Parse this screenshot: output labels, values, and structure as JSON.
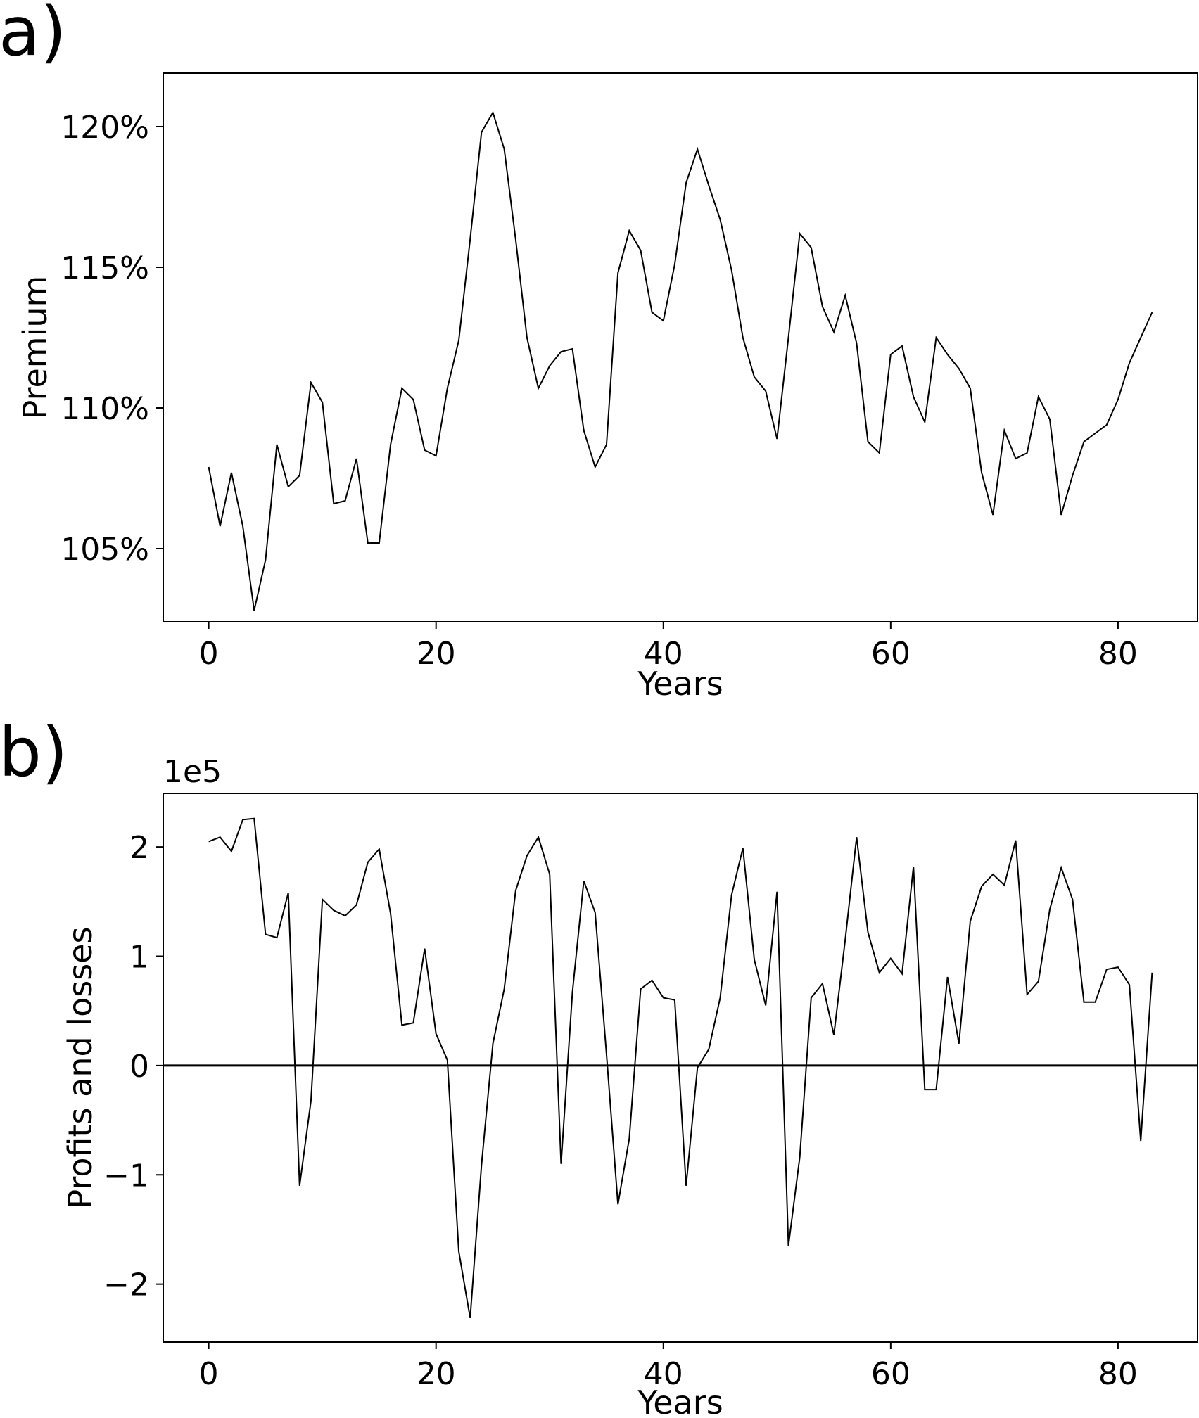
{
  "chart_data": [
    {
      "type": "line",
      "panel_label": "a)",
      "xlabel": "Years",
      "ylabel": "Premium",
      "xlim": [
        -4,
        87
      ],
      "ylim": [
        102.4,
        121.9
      ],
      "xticks": [
        0,
        20,
        40,
        60,
        80
      ],
      "xtick_labels": [
        "0",
        "20",
        "40",
        "60",
        "80"
      ],
      "yticks": [
        105,
        110,
        115,
        120
      ],
      "ytick_labels": [
        "105%",
        "110%",
        "115%",
        "120%"
      ],
      "grid": false,
      "series": [
        {
          "x": [
            0,
            1,
            2,
            3,
            4,
            5,
            6,
            7,
            8,
            9,
            10,
            11,
            12,
            13,
            14,
            15,
            16,
            17,
            18,
            19,
            20,
            21,
            22,
            23,
            24,
            25,
            26,
            27,
            28,
            29,
            30,
            31,
            32,
            33,
            34,
            35,
            36,
            37,
            38,
            39,
            40,
            41,
            42,
            43,
            44,
            45,
            46,
            47,
            48,
            49,
            50,
            51,
            52,
            53,
            54,
            55,
            56,
            57,
            58,
            59,
            60,
            61,
            62,
            63,
            64,
            65,
            66,
            67,
            68,
            69,
            70,
            71,
            72,
            73,
            74,
            75,
            76,
            77,
            78,
            79,
            80,
            81,
            82,
            83
          ],
          "y": [
            107.9,
            105.8,
            107.7,
            105.8,
            102.8,
            104.6,
            108.7,
            107.2,
            107.6,
            110.9,
            110.2,
            106.6,
            106.7,
            108.2,
            105.2,
            105.2,
            108.7,
            110.7,
            110.3,
            108.5,
            108.3,
            110.7,
            112.4,
            116.0,
            119.8,
            120.5,
            119.2,
            116.0,
            112.5,
            110.7,
            111.5,
            112.0,
            112.1,
            109.2,
            107.9,
            108.7,
            114.8,
            116.3,
            115.6,
            113.4,
            113.1,
            115.1,
            118.0,
            119.2,
            117.9,
            116.7,
            114.9,
            112.5,
            111.1,
            110.6,
            108.9,
            112.5,
            116.2,
            115.7,
            113.6,
            112.7,
            114.0,
            112.3,
            108.8,
            108.4,
            111.9,
            112.2,
            110.4,
            109.5,
            112.5,
            111.9,
            111.4,
            110.7,
            107.7,
            106.2,
            109.2,
            108.2,
            108.4,
            110.4,
            109.6,
            106.2,
            107.6,
            108.8,
            109.1,
            109.4,
            110.3,
            111.6,
            112.5,
            113.4
          ]
        }
      ]
    },
    {
      "type": "line",
      "panel_label": "b)",
      "xlabel": "Years",
      "ylabel": "Profits and losses",
      "offset_text": "1e5",
      "xlim": [
        -4,
        87
      ],
      "ylim": [
        -2.53,
        2.49
      ],
      "xticks": [
        0,
        20,
        40,
        60,
        80
      ],
      "xtick_labels": [
        "0",
        "20",
        "40",
        "60",
        "80"
      ],
      "yticks": [
        -2,
        -1,
        0,
        1,
        2
      ],
      "ytick_labels": [
        "−2",
        "−1",
        "0",
        "1",
        "2"
      ],
      "zero_line": true,
      "grid": false,
      "series": [
        {
          "x": [
            0,
            1,
            2,
            3,
            4,
            5,
            6,
            7,
            8,
            9,
            10,
            11,
            12,
            13,
            14,
            15,
            16,
            17,
            18,
            19,
            20,
            21,
            22,
            23,
            24,
            25,
            26,
            27,
            28,
            29,
            30,
            31,
            32,
            33,
            34,
            35,
            36,
            37,
            38,
            39,
            40,
            41,
            42,
            43,
            44,
            45,
            46,
            47,
            48,
            49,
            50,
            51,
            52,
            53,
            54,
            55,
            56,
            57,
            58,
            59,
            60,
            61,
            62,
            63,
            64,
            65,
            66,
            67,
            68,
            69,
            70,
            71,
            72,
            73,
            74,
            75,
            76,
            77,
            78,
            79,
            80,
            81,
            82,
            83
          ],
          "y": [
            2.05,
            2.09,
            1.96,
            2.25,
            2.26,
            1.2,
            1.17,
            1.58,
            -1.1,
            -0.32,
            1.52,
            1.42,
            1.37,
            1.47,
            1.86,
            1.98,
            1.39,
            0.37,
            0.39,
            1.07,
            0.29,
            0.05,
            -1.7,
            -2.31,
            -0.91,
            0.2,
            0.7,
            1.6,
            1.92,
            2.09,
            1.75,
            -0.9,
            0.67,
            1.69,
            1.4,
            0.1,
            -1.27,
            -0.67,
            0.7,
            0.78,
            0.62,
            0.6,
            -1.1,
            -0.02,
            0.15,
            0.62,
            1.56,
            1.99,
            0.97,
            0.55,
            1.59,
            -1.65,
            -0.84,
            0.62,
            0.75,
            0.28,
            1.15,
            2.09,
            1.22,
            0.85,
            0.98,
            0.84,
            1.82,
            -0.22,
            -0.22,
            0.81,
            0.2,
            1.32,
            1.64,
            1.75,
            1.65,
            2.06,
            0.65,
            0.77,
            1.43,
            1.81,
            1.52,
            0.58,
            0.58,
            0.88,
            0.9,
            0.74,
            -0.69,
            0.85
          ]
        }
      ]
    }
  ]
}
